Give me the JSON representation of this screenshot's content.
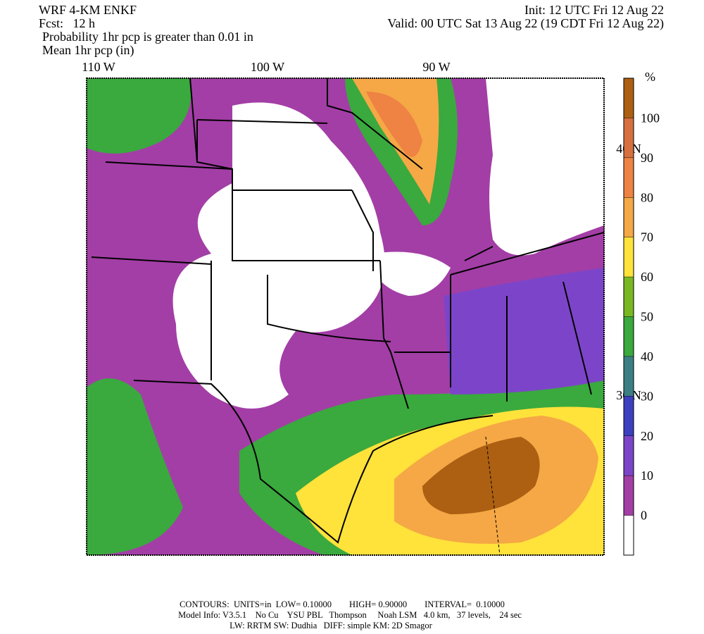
{
  "header": {
    "model": "WRF 4-KM ENKF",
    "forecast": "Fcst:   12 h",
    "init": "Init: 12 UTC Fri 12 Aug 22",
    "valid": "Valid: 00 UTC Sat 13 Aug 22 (19 CDT Fri 12 Aug 22)",
    "field1": "Probability 1hr pcp is greater than 0.01 in",
    "field2": "Mean 1hr pcp (in)"
  },
  "map": {
    "lon_labels": [
      "110 W",
      "100 W",
      "90 W"
    ],
    "lat_labels": [
      "40 N",
      "30 N"
    ]
  },
  "colorbar": {
    "unit": "%",
    "levels": [
      0,
      10,
      20,
      30,
      40,
      50,
      60,
      70,
      80,
      90,
      100
    ],
    "colors": [
      "#ffffff",
      "#a33ea6",
      "#7c45c9",
      "#3d3fbf",
      "#3b7f83",
      "#3aa93e",
      "#7ab822",
      "#ffe23a",
      "#f5a845",
      "#ee8344",
      "#d6703f",
      "#ad6012"
    ]
  },
  "footer": {
    "line1": "CONTOURS:  UNITS=in  LOW= 0.10000        HIGH= 0.90000        INTERVAL=  0.10000",
    "line2": "Model Info: V3.5.1    No Cu    YSU PBL   Thompson     Noah LSM   4.0 km,   37 levels,    24 sec",
    "line3": "LW: RRTM SW: Dudhia   DIFF: simple KM: 2D Smagor"
  }
}
